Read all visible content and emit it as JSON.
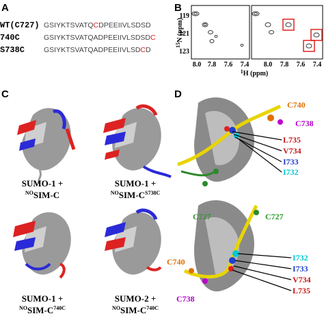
{
  "panel_a": {
    "label": "A",
    "rows": [
      {
        "name": "WT(C727)",
        "parts": [
          "GSIYKTSVATQ",
          "C",
          "DPEEIIVLSDSD"
        ]
      },
      {
        "name": "740C",
        "parts": [
          "GSIYKTSVATQADPEEIIVLSDSD",
          "C",
          ""
        ]
      },
      {
        "name": "S738C",
        "parts": [
          "GSIYKTSVATQADPEEIIVLSD",
          "C",
          "D"
        ]
      }
    ]
  },
  "panel_b": {
    "label": "B",
    "y_label_sup": "15",
    "y_label": "N (ppm)",
    "x_label_sup": "1",
    "x_label": "H (ppm)",
    "yticks": [
      "119",
      "121",
      "123"
    ],
    "xticks": [
      "8.0",
      "7.8",
      "7.6",
      "7.4"
    ]
  },
  "panel_c": {
    "label": "C",
    "captions": [
      {
        "line1": "SUMO-1 +",
        "pre": "NO",
        "main": "SIM-C",
        "sup": ""
      },
      {
        "line1": "SUMO-1 +",
        "pre": "NO",
        "main": "SIM-C",
        "sup": "S738C"
      },
      {
        "line1": "SUMO-1 +",
        "pre": "NO",
        "main": "SIM-C",
        "sup": "740C"
      },
      {
        "line1": "SUMO-2 +",
        "pre": "NO",
        "main": "SIM-C",
        "sup": "740C"
      }
    ]
  },
  "panel_d": {
    "label": "D",
    "top": [
      "C740",
      "C738",
      "L735",
      "V734",
      "I733",
      "I732",
      "C727"
    ],
    "bottom": [
      "C727",
      "I732",
      "I733",
      "V734",
      "L735",
      "C740",
      "C738"
    ]
  }
}
